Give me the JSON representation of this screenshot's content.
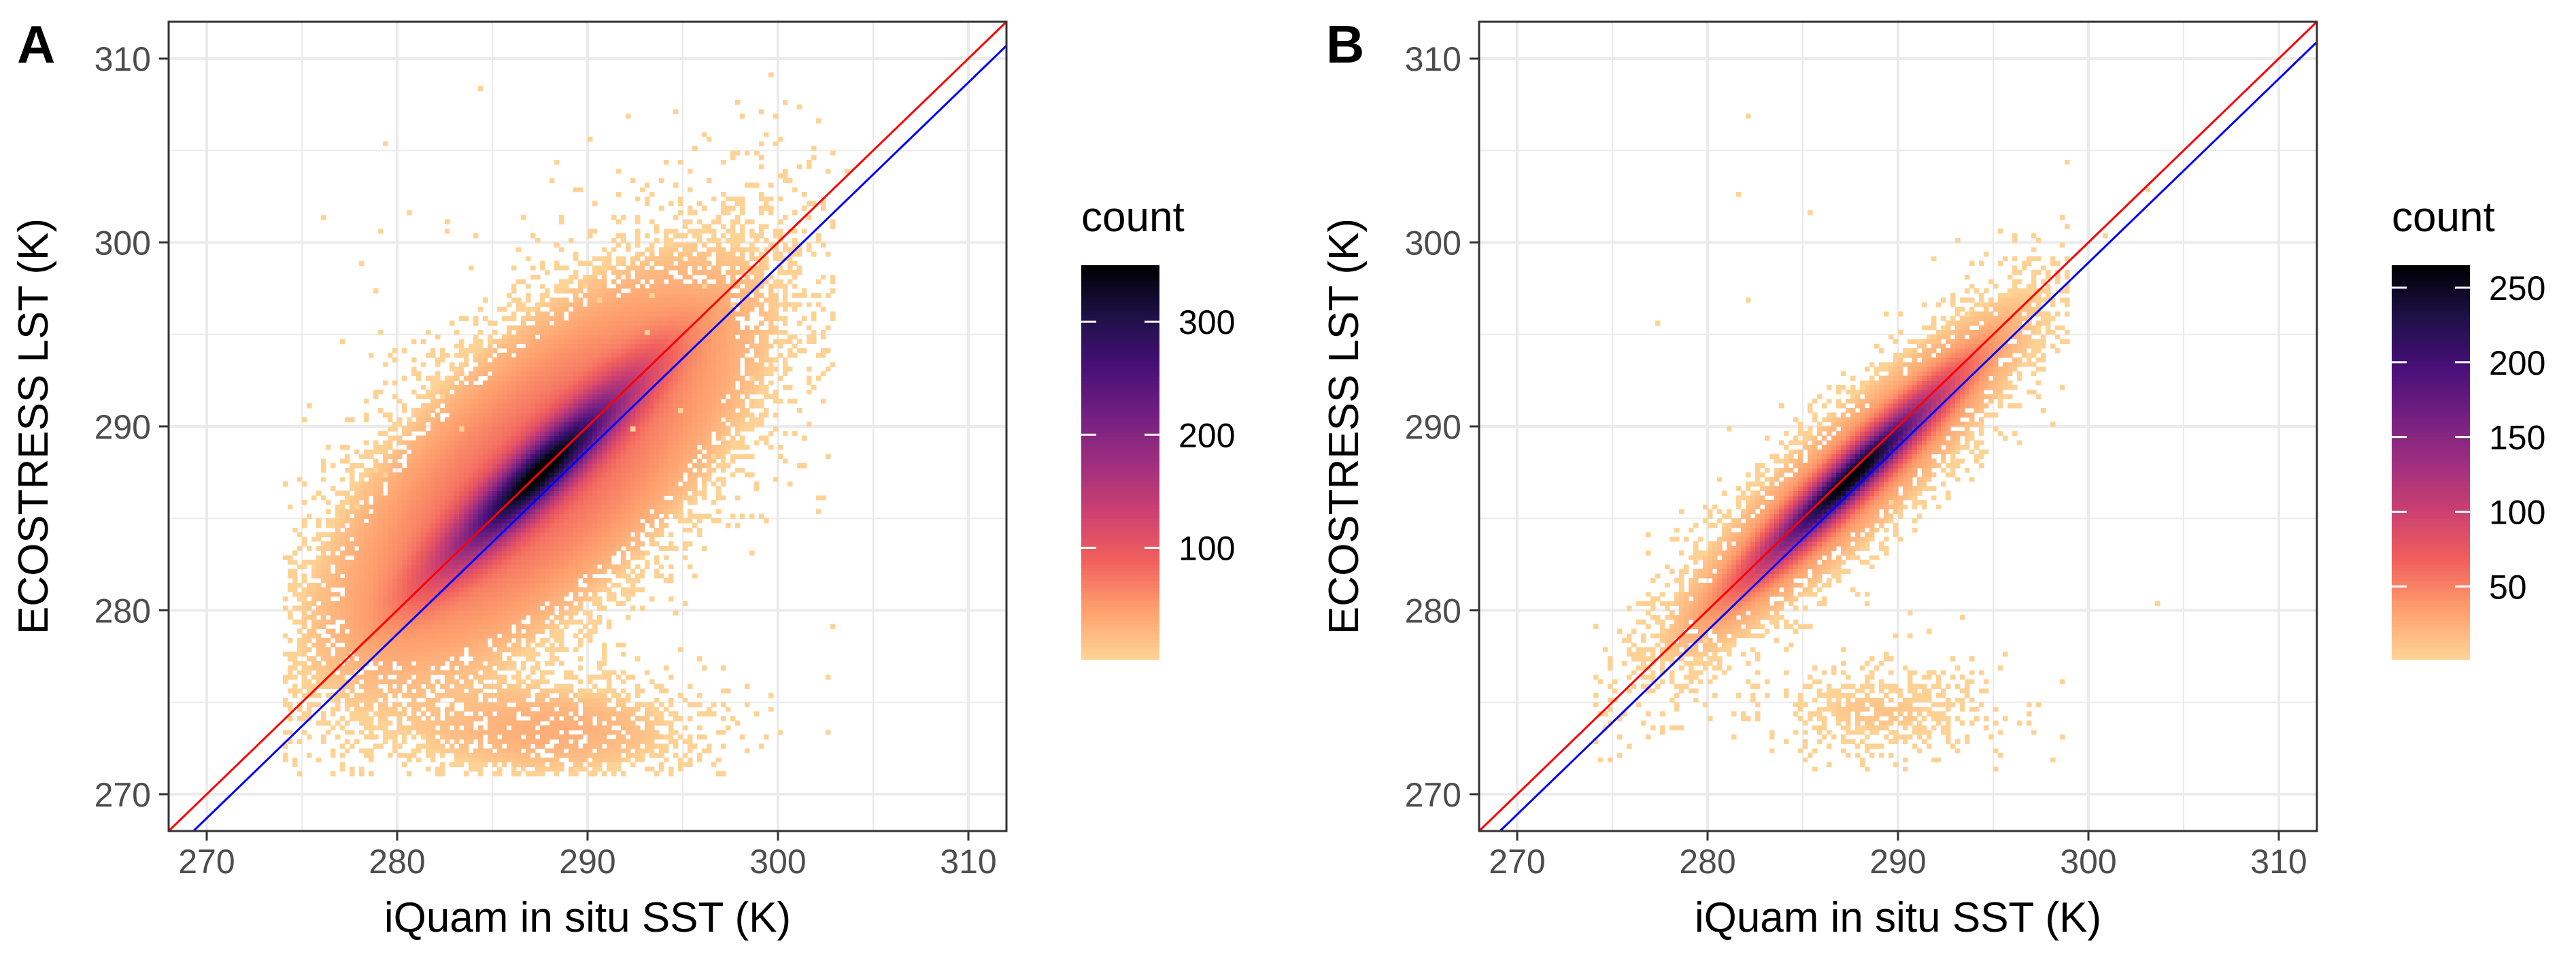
{
  "chart_data": [
    {
      "type": "heatmap",
      "panel_label": "A",
      "title": "",
      "xlabel": "iQuam in situ SST (K)",
      "ylabel": "ECOSTRESS LST (K)",
      "xlim": [
        268,
        312
      ],
      "ylim": [
        268,
        312
      ],
      "x_ticks": [
        270,
        280,
        290,
        300,
        310
      ],
      "y_ticks": [
        270,
        280,
        290,
        300,
        310
      ],
      "x_tick_labels": [
        "270",
        "280",
        "290",
        "300",
        "310"
      ],
      "y_tick_labels": [
        "270",
        "280",
        "290",
        "300",
        "310"
      ],
      "grid": true,
      "legend": {
        "title": "count",
        "position": "right",
        "range": [
          1,
          350
        ],
        "ticks": [
          100,
          200,
          300
        ],
        "tick_labels": [
          "100",
          "200",
          "300"
        ]
      },
      "colormap": [
        "#fed395",
        "#fe9f6d",
        "#f1605d",
        "#cd4071",
        "#9e2f7f",
        "#721f81",
        "#451077",
        "#1d1147",
        "#000004"
      ],
      "lines": [
        {
          "name": "1:1 line",
          "color": "#ff0000",
          "slope": 1,
          "intercept": 0
        },
        {
          "name": "regression",
          "color": "#0000ff",
          "slope": 1,
          "intercept": -1.3
        }
      ],
      "density": {
        "bins_per_unit": 4,
        "main_peak": [
          287.5,
          287.5
        ],
        "main_peak_count": 350,
        "main_spread_along": 3.6,
        "main_spread_across": 0.8,
        "broad_cloud_count": 18,
        "broad_cloud_spread_across": 3.0,
        "low_cluster": {
          "center": [
            288,
            273.5
          ],
          "spread": [
            4.5,
            1.6
          ],
          "count": 3
        },
        "x_range": [
          274,
          303
        ],
        "y_range": [
          271,
          310
        ]
      }
    },
    {
      "type": "heatmap",
      "panel_label": "B",
      "title": "",
      "xlabel": "iQuam in situ SST (K)",
      "ylabel": "ECOSTRESS LST (K)",
      "xlim": [
        268,
        312
      ],
      "ylim": [
        268,
        312
      ],
      "x_ticks": [
        270,
        280,
        290,
        300,
        310
      ],
      "y_ticks": [
        270,
        280,
        290,
        300,
        310
      ],
      "x_tick_labels": [
        "270",
        "280",
        "290",
        "300",
        "310"
      ],
      "y_tick_labels": [
        "270",
        "280",
        "290",
        "300",
        "310"
      ],
      "grid": true,
      "legend": {
        "title": "count",
        "position": "right",
        "range": [
          1,
          265
        ],
        "ticks": [
          50,
          100,
          150,
          200,
          250
        ],
        "tick_labels": [
          "50",
          "100",
          "150",
          "200",
          "250"
        ]
      },
      "colormap": [
        "#fed395",
        "#fe9f6d",
        "#f1605d",
        "#cd4071",
        "#9e2f7f",
        "#721f81",
        "#451077",
        "#1d1147",
        "#000004"
      ],
      "lines": [
        {
          "name": "1:1 line",
          "color": "#ff0000",
          "slope": 1,
          "intercept": 0
        },
        {
          "name": "regression",
          "color": "#0000ff",
          "slope": 1,
          "intercept": -1.1
        }
      ],
      "density": {
        "bins_per_unit": 4,
        "main_peak": [
          287.5,
          287.2
        ],
        "main_peak_count": 265,
        "main_spread_along": 3.4,
        "main_spread_across": 0.55,
        "broad_cloud_count": 8,
        "broad_cloud_spread_across": 1.6,
        "low_cluster": {
          "center": [
            289,
            274.5
          ],
          "spread": [
            3.5,
            1.4
          ],
          "count": 1.5
        },
        "x_range": [
          274,
          299
        ],
        "y_range": [
          271,
          310
        ]
      }
    }
  ]
}
